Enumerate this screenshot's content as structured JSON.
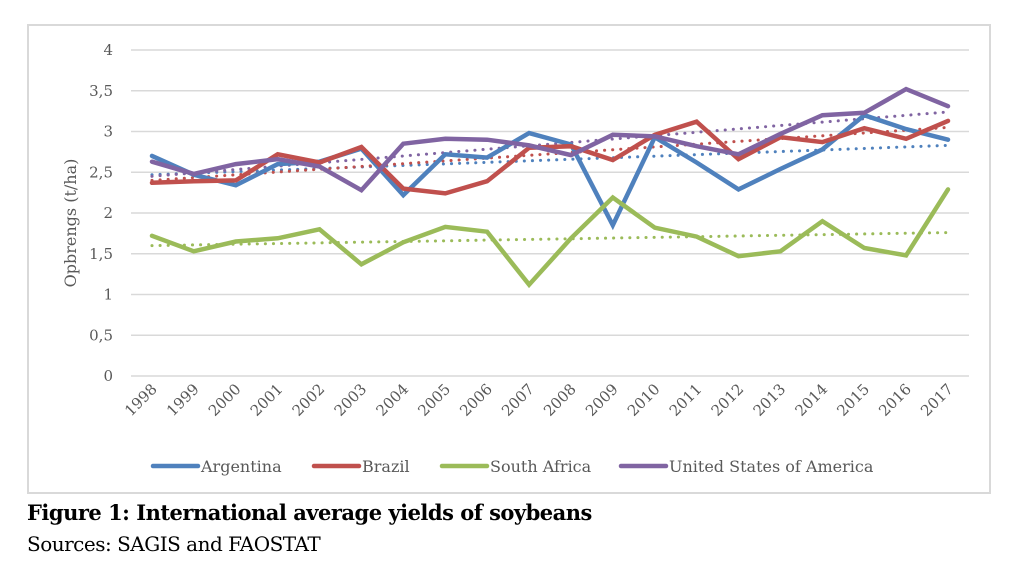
{
  "chart_data": {
    "type": "line",
    "title": "",
    "xlabel": "",
    "ylabel": "Opbrengs (t/ha)",
    "ylim": [
      0,
      4
    ],
    "yticks": [
      0,
      0.5,
      1,
      1.5,
      2,
      2.5,
      3,
      3.5,
      4
    ],
    "ytick_labels": [
      "0",
      "0,5",
      "1",
      "1,5",
      "2",
      "2,5",
      "3",
      "3,5",
      "4"
    ],
    "grid": true,
    "legend_position": "bottom",
    "categories": [
      "1998",
      "1999",
      "2000",
      "2001",
      "2002",
      "2003",
      "2004",
      "2005",
      "2006",
      "2007",
      "2008",
      "2009",
      "2010",
      "2011",
      "2012",
      "2013",
      "2014",
      "2015",
      "2016",
      "2017"
    ],
    "series": [
      {
        "name": "Argentina",
        "color": "#4f81bd",
        "values": [
          2.7,
          2.47,
          2.34,
          2.6,
          2.63,
          2.79,
          2.22,
          2.72,
          2.68,
          2.98,
          2.84,
          1.85,
          2.93,
          2.62,
          2.29,
          2.54,
          2.78,
          3.2,
          3.03,
          2.9
        ],
        "trendline": {
          "type": "linear",
          "start": 2.47,
          "end": 2.83
        }
      },
      {
        "name": "Brazil",
        "color": "#c0504d",
        "values": [
          2.37,
          2.39,
          2.4,
          2.72,
          2.62,
          2.81,
          2.3,
          2.24,
          2.39,
          2.8,
          2.82,
          2.65,
          2.96,
          3.12,
          2.66,
          2.93,
          2.87,
          3.04,
          2.91,
          3.13
        ],
        "trendline": {
          "type": "linear",
          "start": 2.4,
          "end": 3.05
        }
      },
      {
        "name": "South Africa",
        "color": "#9bbb59",
        "values": [
          1.72,
          1.53,
          1.65,
          1.69,
          1.8,
          1.37,
          1.64,
          1.83,
          1.77,
          1.12,
          1.69,
          2.19,
          1.82,
          1.71,
          1.47,
          1.53,
          1.9,
          1.57,
          1.48,
          2.29
        ],
        "trendline": {
          "type": "linear",
          "start": 1.6,
          "end": 1.76
        }
      },
      {
        "name": "United States of America",
        "color": "#8064a2",
        "values": [
          2.63,
          2.48,
          2.6,
          2.66,
          2.57,
          2.28,
          2.85,
          2.91,
          2.9,
          2.83,
          2.71,
          2.96,
          2.94,
          2.82,
          2.72,
          2.97,
          3.2,
          3.23,
          3.52,
          3.31
        ],
        "trendline": {
          "type": "linear",
          "start": 2.45,
          "end": 3.24
        }
      }
    ]
  },
  "caption": {
    "title": "Figure 1: International average yields of soybeans",
    "source": "Sources: SAGIS and FAOSTAT"
  },
  "colors": {
    "gridline": "#d9d9d9",
    "text": "#595959",
    "frame": "#d9d9d9"
  }
}
